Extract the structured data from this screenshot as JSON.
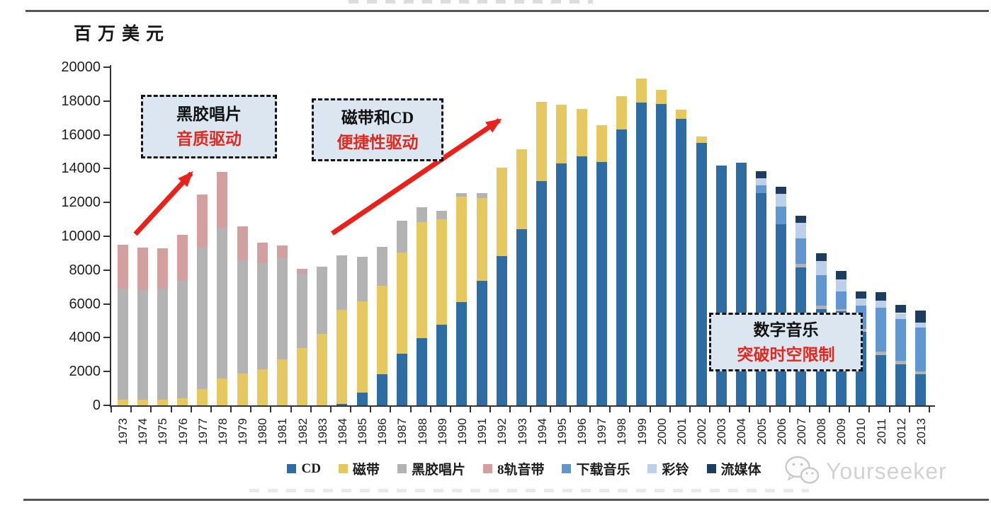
{
  "page": {
    "watermark": "Yourseeker"
  },
  "chart_data": {
    "type": "bar",
    "stacked": true,
    "unit_label": "百万美元",
    "ylim": [
      0,
      20000
    ],
    "ytick_step": 2000,
    "grid": "off",
    "legend_position": "bottom",
    "categories": [
      "1973",
      "1974",
      "1975",
      "1976",
      "1977",
      "1978",
      "1979",
      "1980",
      "1981",
      "1982",
      "1983",
      "1984",
      "1985",
      "1986",
      "1987",
      "1988",
      "1989",
      "1990",
      "1991",
      "1992",
      "1993",
      "1994",
      "1995",
      "1996",
      "1997",
      "1998",
      "1999",
      "2000",
      "2001",
      "2002",
      "2003",
      "2004",
      "2005",
      "2006",
      "2007",
      "2008",
      "2009",
      "2010",
      "2011",
      "2012",
      "2013"
    ],
    "series": [
      {
        "name": "CD",
        "color": "#2e6da4",
        "values": [
          0,
          0,
          0,
          0,
          0,
          0,
          0,
          0,
          0,
          0,
          0,
          100,
          750,
          1840,
          3050,
          3970,
          4760,
          6100,
          7360,
          8820,
          10410,
          13250,
          14300,
          14720,
          14380,
          16300,
          17890,
          17810,
          16930,
          15510,
          14200,
          14350,
          12540,
          10700,
          8150,
          5700,
          5550,
          4350,
          2980,
          2420,
          1830
        ]
      },
      {
        "name": "磁带",
        "color": "#e6c860",
        "values": [
          350,
          350,
          350,
          420,
          960,
          1590,
          1880,
          2130,
          2720,
          3390,
          4220,
          5540,
          5390,
          5220,
          5980,
          6860,
          6230,
          6230,
          4890,
          5220,
          4720,
          4700,
          3500,
          2830,
          2170,
          2000,
          1450,
          850,
          570,
          370,
          0,
          0,
          0,
          0,
          0,
          0,
          0,
          0,
          0,
          0,
          0
        ]
      },
      {
        "name": "黑胶唱片",
        "color": "#b3b3b3",
        "values": [
          6550,
          6450,
          6550,
          6940,
          8360,
          8900,
          6680,
          6270,
          5970,
          4390,
          3970,
          3220,
          2640,
          2300,
          1880,
          870,
          500,
          210,
          290,
          0,
          0,
          0,
          0,
          0,
          0,
          0,
          0,
          0,
          0,
          0,
          0,
          0,
          0,
          0,
          200,
          180,
          150,
          150,
          210,
          210,
          180
        ]
      },
      {
        "name": "8轨音带",
        "color": "#d2a09f",
        "values": [
          2600,
          2550,
          2400,
          2710,
          3140,
          3300,
          2010,
          1220,
          760,
          290,
          0,
          0,
          0,
          0,
          0,
          0,
          0,
          0,
          0,
          0,
          0,
          0,
          0,
          0,
          0,
          0,
          0,
          0,
          0,
          0,
          0,
          0,
          0,
          0,
          0,
          0,
          0,
          0,
          0,
          0,
          0
        ]
      },
      {
        "name": "下载音乐",
        "color": "#6197d0",
        "values": [
          0,
          0,
          0,
          0,
          0,
          0,
          0,
          0,
          0,
          0,
          0,
          0,
          0,
          0,
          0,
          0,
          0,
          0,
          0,
          0,
          0,
          0,
          0,
          0,
          0,
          0,
          0,
          0,
          0,
          0,
          0,
          0,
          460,
          1050,
          1530,
          1800,
          1040,
          1400,
          2580,
          2480,
          2600
        ]
      },
      {
        "name": "彩铃",
        "color": "#bdd0e9",
        "values": [
          0,
          0,
          0,
          0,
          0,
          0,
          0,
          0,
          0,
          0,
          0,
          0,
          0,
          0,
          0,
          0,
          0,
          0,
          0,
          0,
          0,
          0,
          0,
          0,
          0,
          0,
          0,
          0,
          0,
          0,
          0,
          0,
          420,
          750,
          900,
          850,
          700,
          420,
          420,
          350,
          280
        ]
      },
      {
        "name": "流媒体",
        "color": "#1d3d5f",
        "values": [
          0,
          0,
          0,
          0,
          0,
          0,
          0,
          0,
          0,
          0,
          0,
          0,
          0,
          0,
          0,
          0,
          0,
          0,
          0,
          0,
          0,
          0,
          0,
          0,
          0,
          0,
          0,
          0,
          0,
          0,
          0,
          0,
          420,
          420,
          450,
          450,
          500,
          420,
          490,
          490,
          700
        ]
      }
    ],
    "annotations": [
      {
        "line1": "黑胶唱片",
        "line2": "音质驱动"
      },
      {
        "line1": "磁带和CD",
        "line2": "便捷性驱动"
      },
      {
        "line1": "数字音乐",
        "line2": "突破时空限制"
      }
    ],
    "colors": {
      "arrow_red": "#e8211a",
      "annotation_red_text": "#df2a20",
      "annotation_box_fill": "#dce6f1",
      "annotation_box_border": "#141414"
    }
  }
}
